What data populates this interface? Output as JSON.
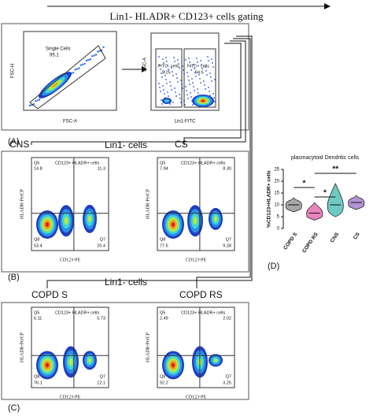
{
  "header": {
    "title": "Lin1- HLADR+ CD123+ cells gating"
  },
  "panel_a": {
    "label": "(A)",
    "plots": [
      {
        "x_label": "FSC-A",
        "y_label": "FSC-H",
        "gates": [
          {
            "name": "Single Cells",
            "value": "95.1"
          }
        ]
      },
      {
        "x_label": "Lin1-FITC",
        "y_label": "SSC-A",
        "gates": [
          {
            "name": "FITC- cells",
            "value": "5.25"
          },
          {
            "name": "FITC+ cells",
            "value": "94.5"
          }
        ]
      }
    ]
  },
  "panel_b": {
    "label": "(B)",
    "heading": "Lin1- cells",
    "plots": [
      {
        "title": "CNS",
        "gate": "CD123+ HLADR+ cells",
        "x_label": "CD123-PE",
        "y_label": "HLADR-PerCP",
        "q5_name": "Q5",
        "q5": "14.8",
        "q6": "11.3",
        "q8_name": "Q8",
        "q8": "53.4",
        "q7_name": "Q7",
        "q7": "20.4"
      },
      {
        "title": "CS",
        "gate": "CD123+ HLADR+ cells",
        "x_label": "CD123-PE",
        "y_label": "HLADR-PerCP",
        "q5_name": "Q5",
        "q5": "7.94",
        "q6": "8.30",
        "q8_name": "Q8",
        "q8": "77.5",
        "q7_name": "Q7",
        "q7": "9.28"
      }
    ]
  },
  "panel_c": {
    "label": "(C)",
    "heading": "Lin1- cells",
    "plots": [
      {
        "title": "COPD S",
        "gate": "CD123+ HLADR+ cells",
        "x_label": "CD123-PE",
        "y_label": "HLADR-PerCP",
        "q5_name": "Q5",
        "q5": "6.11",
        "q6": "5.73",
        "q8_name": "Q8",
        "q8": "76.1",
        "q7_name": "Q7",
        "q7": "12.1"
      },
      {
        "title": "COPD RS",
        "gate": "CD123+ HLADR+ cells",
        "x_label": "CD123-PE",
        "y_label": "HLADR-PerCP",
        "q5_name": "Q5",
        "q5": "2.49",
        "q6": "2.02",
        "q8_name": "Q8",
        "q8": "92.2",
        "q7_name": "Q7",
        "q7": "3.25"
      }
    ]
  },
  "chart_data": {
    "type": "violin",
    "label": "(D)",
    "title": "plasmacytoid Dendritic cells",
    "y_label": "%CD123+HLADR+ cells",
    "categories": [
      "COPD S",
      "COPD RS",
      "CNS",
      "CS"
    ],
    "values": [
      10,
      6.5,
      10,
      11
    ],
    "mins": [
      7,
      3.5,
      5,
      8
    ],
    "maxs": [
      13,
      11,
      19,
      14
    ],
    "colors": [
      "#8a8a8a",
      "#e05aa8",
      "#3fb8b0",
      "#9a6fc6"
    ],
    "ylim": [
      0,
      25
    ],
    "yticks": [
      0,
      5,
      10,
      15,
      20,
      25
    ],
    "annotations": [
      "*",
      "**",
      "*"
    ]
  }
}
